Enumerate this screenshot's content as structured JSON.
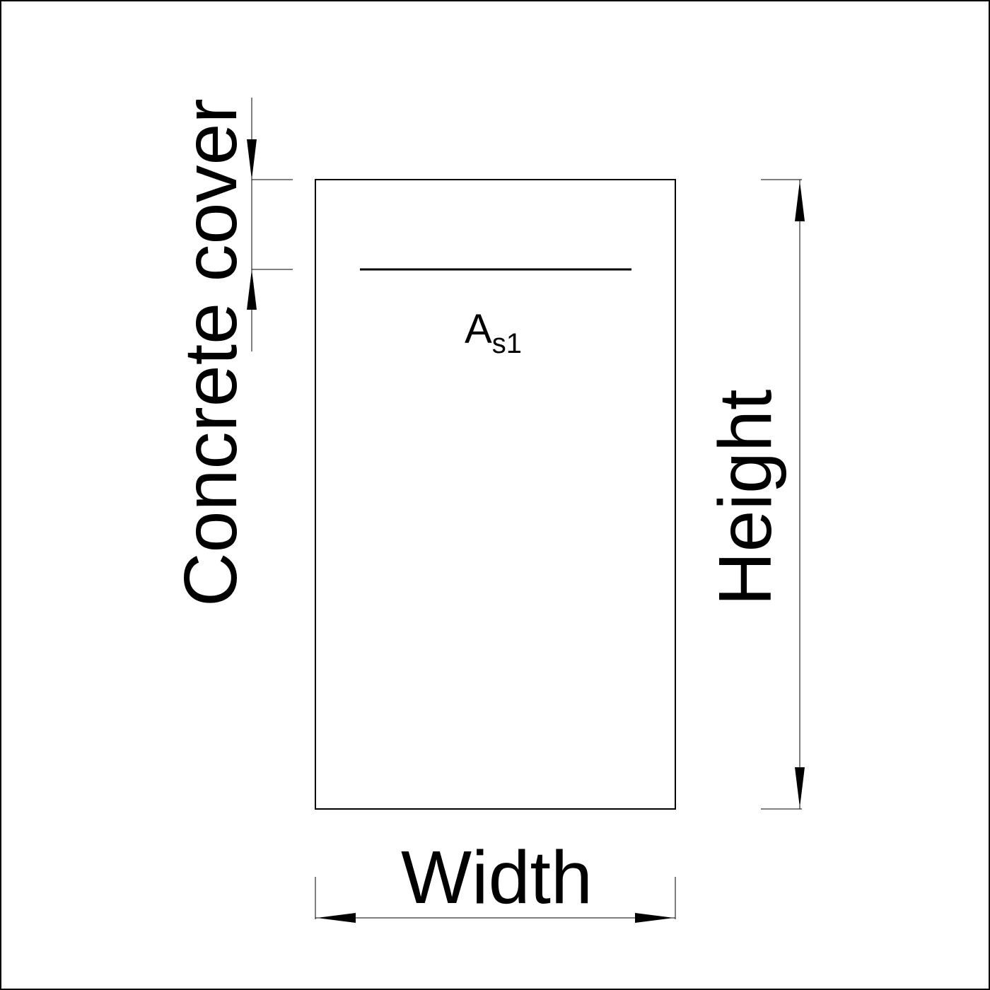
{
  "labels": {
    "concrete_cover": "Concrete cover",
    "height": "Height",
    "width": "Width",
    "rebar_main": "A",
    "rebar_sub": "s1"
  },
  "colors": {
    "stroke": "#000000",
    "background": "#ffffff"
  }
}
